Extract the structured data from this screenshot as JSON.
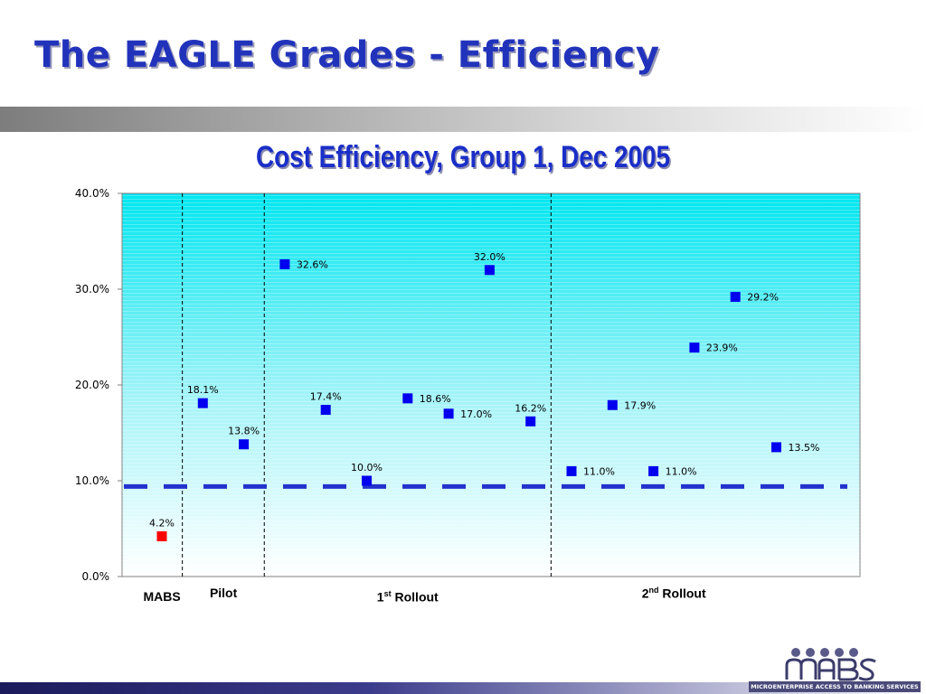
{
  "slide": {
    "title": "The EAGLE Grades - Efficiency"
  },
  "chart_data": {
    "type": "scatter",
    "title": "Cost Efficiency, Group 1,  Dec 2005",
    "xlabel": "",
    "ylabel": "",
    "ylim": [
      0,
      40
    ],
    "yticks": [
      "0.0%",
      "10.0%",
      "20.0%",
      "30.0%",
      "40.0%"
    ],
    "grid": false,
    "legend": "none",
    "background": "gradient cyan-to-white",
    "reference_line": {
      "value": 9.4,
      "style": "dashed",
      "color": "#2233cc"
    },
    "groups": [
      {
        "name": "MABS",
        "points": [
          {
            "value": 4.2,
            "label": "4.2%",
            "color": "#ff0000"
          }
        ]
      },
      {
        "name": "Pilot",
        "points": [
          {
            "value": 18.1,
            "label": "18.1%"
          },
          {
            "value": 13.8,
            "label": "13.8%"
          }
        ]
      },
      {
        "name": "1st Rollout",
        "points": [
          {
            "value": 32.6,
            "label": "32.6%"
          },
          {
            "value": 17.4,
            "label": "17.4%"
          },
          {
            "value": 10.0,
            "label": "10.0%"
          },
          {
            "value": 18.6,
            "label": "18.6%"
          },
          {
            "value": 17.0,
            "label": "17.0%"
          },
          {
            "value": 32.0,
            "label": "32.0%"
          },
          {
            "value": 16.2,
            "label": "16.2%"
          }
        ]
      },
      {
        "name": "2nd Rollout",
        "points": [
          {
            "value": 11.0,
            "label": "11.0%"
          },
          {
            "value": 17.9,
            "label": "17.9%"
          },
          {
            "value": 11.0,
            "label": "11.0%"
          },
          {
            "value": 23.9,
            "label": "23.9%"
          },
          {
            "value": 29.2,
            "label": "29.2%"
          },
          {
            "value": 13.5,
            "label": "13.5%"
          }
        ]
      }
    ],
    "group_labels": [
      {
        "base": "MABS",
        "sup": "",
        "suffix": ""
      },
      {
        "base": "Pilot",
        "sup": "",
        "suffix": ""
      },
      {
        "base": "1",
        "sup": "st",
        "suffix": " Rollout"
      },
      {
        "base": "2",
        "sup": "nd",
        "suffix": " Rollout"
      }
    ],
    "marker_color": "#0000ee",
    "highlight_color": "#ff0000"
  },
  "logo": {
    "text": "MICROENTERPRISE ACCESS TO BANKING SERVICES"
  }
}
